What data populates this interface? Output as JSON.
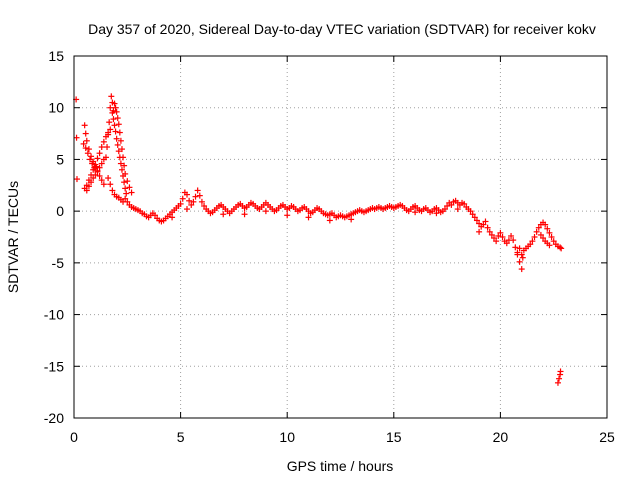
{
  "chart_data": {
    "type": "scatter",
    "title": "Day 357 of 2020, Sidereal Day-to-day VTEC variation (SDTVAR) for receiver kokv",
    "xlabel": "GPS time / hours",
    "ylabel": "SDTVAR / TECUs",
    "xlim": [
      0,
      25
    ],
    "ylim": [
      -20,
      15
    ],
    "xticks": [
      0,
      5,
      10,
      15,
      20,
      25
    ],
    "yticks": [
      15,
      10,
      5,
      0,
      -5,
      -10,
      -15,
      -20
    ],
    "grid": true,
    "marker": "+",
    "marker_color": "#ff0000",
    "series": [
      {
        "name": "SDTVAR",
        "points": [
          [
            0.1,
            10.8
          ],
          [
            0.12,
            7.1
          ],
          [
            0.14,
            3.1
          ],
          [
            0.5,
            8.3
          ],
          [
            0.55,
            7.5
          ],
          [
            0.6,
            6.8
          ],
          [
            0.7,
            6.0
          ],
          [
            0.8,
            5.3
          ],
          [
            0.9,
            4.8
          ],
          [
            1.0,
            4.3
          ],
          [
            1.1,
            3.8
          ],
          [
            1.2,
            3.4
          ],
          [
            1.3,
            3.0
          ],
          [
            1.4,
            2.6
          ],
          [
            0.45,
            6.5
          ],
          [
            0.55,
            6.1
          ],
          [
            0.65,
            5.6
          ],
          [
            0.75,
            5.0
          ],
          [
            0.85,
            4.6
          ],
          [
            0.95,
            4.2
          ],
          [
            1.05,
            4.3
          ],
          [
            0.5,
            2.2
          ],
          [
            0.6,
            2.5
          ],
          [
            0.7,
            3.0
          ],
          [
            0.8,
            3.5
          ],
          [
            0.9,
            4.0
          ],
          [
            1.0,
            4.5
          ],
          [
            1.1,
            5.1
          ],
          [
            1.2,
            5.6
          ],
          [
            1.3,
            6.2
          ],
          [
            1.4,
            6.7
          ],
          [
            1.5,
            7.2
          ],
          [
            1.6,
            7.6
          ],
          [
            1.7,
            7.9
          ],
          [
            0.6,
            2.0
          ],
          [
            0.7,
            2.4
          ],
          [
            0.8,
            2.8
          ],
          [
            0.9,
            3.2
          ],
          [
            1.0,
            3.5
          ],
          [
            1.1,
            3.9
          ],
          [
            1.2,
            4.2
          ],
          [
            1.3,
            4.6
          ],
          [
            1.4,
            5.0
          ],
          [
            1.5,
            5.2
          ],
          [
            1.55,
            6.2
          ],
          [
            1.6,
            7.4
          ],
          [
            1.65,
            8.6
          ],
          [
            1.7,
            10.0
          ],
          [
            1.75,
            11.1
          ],
          [
            1.8,
            10.5
          ],
          [
            1.85,
            9.7
          ],
          [
            1.8,
            9.5
          ],
          [
            1.85,
            8.9
          ],
          [
            1.9,
            8.3
          ],
          [
            1.95,
            7.7
          ],
          [
            2.0,
            7.0
          ],
          [
            2.05,
            6.4
          ],
          [
            2.1,
            5.8
          ],
          [
            2.15,
            5.2
          ],
          [
            2.2,
            4.6
          ],
          [
            2.25,
            4.0
          ],
          [
            2.3,
            3.4
          ],
          [
            2.35,
            2.8
          ],
          [
            2.4,
            2.2
          ],
          [
            2.45,
            1.7
          ],
          [
            1.9,
            10.4
          ],
          [
            1.95,
            10.0
          ],
          [
            2.0,
            9.6
          ],
          [
            2.05,
            9.0
          ],
          [
            2.1,
            8.4
          ],
          [
            2.15,
            7.6
          ],
          [
            2.2,
            6.8
          ],
          [
            2.25,
            6.0
          ],
          [
            2.3,
            5.2
          ],
          [
            2.35,
            4.4
          ],
          [
            2.4,
            3.6
          ],
          [
            2.5,
            2.9
          ],
          [
            2.6,
            2.3
          ],
          [
            2.7,
            1.8
          ],
          [
            1.6,
            3.2
          ],
          [
            1.7,
            2.6
          ],
          [
            1.8,
            2.0
          ],
          [
            1.9,
            1.6
          ],
          [
            2.0,
            1.4
          ],
          [
            2.1,
            1.3
          ],
          [
            2.2,
            1.1
          ],
          [
            2.3,
            0.9
          ],
          [
            2.4,
            1.2
          ],
          [
            2.5,
            0.9
          ],
          [
            2.6,
            0.6
          ],
          [
            2.7,
            0.4
          ],
          [
            2.8,
            0.3
          ],
          [
            2.9,
            0.2
          ],
          [
            3.0,
            0.1
          ],
          [
            3.1,
            0.0
          ],
          [
            3.2,
            -0.2
          ],
          [
            3.3,
            -0.3
          ],
          [
            3.4,
            -0.5
          ],
          [
            3.5,
            -0.6
          ],
          [
            3.6,
            -0.4
          ],
          [
            3.7,
            -0.2
          ],
          [
            3.8,
            -0.4
          ],
          [
            3.9,
            -0.7
          ],
          [
            4.0,
            -0.9
          ],
          [
            4.1,
            -1.0
          ],
          [
            4.2,
            -0.9
          ],
          [
            4.3,
            -0.7
          ],
          [
            4.4,
            -0.5
          ],
          [
            4.5,
            -0.3
          ],
          [
            4.6,
            -0.1
          ],
          [
            4.7,
            0.1
          ],
          [
            4.8,
            0.3
          ],
          [
            4.9,
            0.5
          ],
          [
            5.0,
            0.7
          ],
          [
            5.1,
            1.2
          ],
          [
            5.2,
            1.8
          ],
          [
            5.3,
            1.6
          ],
          [
            5.4,
            1.0
          ],
          [
            5.5,
            0.6
          ],
          [
            5.6,
            0.9
          ],
          [
            5.7,
            1.4
          ],
          [
            5.8,
            2.0
          ],
          [
            5.9,
            1.5
          ],
          [
            6.0,
            0.9
          ],
          [
            6.1,
            0.5
          ],
          [
            6.2,
            0.2
          ],
          [
            6.3,
            0.0
          ],
          [
            6.4,
            -0.2
          ],
          [
            6.5,
            -0.1
          ],
          [
            6.6,
            0.1
          ],
          [
            6.7,
            0.3
          ],
          [
            6.8,
            0.5
          ],
          [
            6.9,
            0.6
          ],
          [
            7.0,
            0.4
          ],
          [
            7.1,
            0.2
          ],
          [
            7.2,
            0.0
          ],
          [
            7.3,
            -0.2
          ],
          [
            7.4,
            0.0
          ],
          [
            7.5,
            0.2
          ],
          [
            7.6,
            0.4
          ],
          [
            7.7,
            0.6
          ],
          [
            7.8,
            0.7
          ],
          [
            7.9,
            0.5
          ],
          [
            8.0,
            0.3
          ],
          [
            8.1,
            0.4
          ],
          [
            8.2,
            0.6
          ],
          [
            8.3,
            0.8
          ],
          [
            8.4,
            0.7
          ],
          [
            8.5,
            0.5
          ],
          [
            8.6,
            0.3
          ],
          [
            8.7,
            0.2
          ],
          [
            8.8,
            0.4
          ],
          [
            8.9,
            0.6
          ],
          [
            9.0,
            0.8
          ],
          [
            9.1,
            0.6
          ],
          [
            9.2,
            0.4
          ],
          [
            9.3,
            0.2
          ],
          [
            9.4,
            0.0
          ],
          [
            9.5,
            0.1
          ],
          [
            9.6,
            0.3
          ],
          [
            9.7,
            0.5
          ],
          [
            9.8,
            0.6
          ],
          [
            9.9,
            0.4
          ],
          [
            10.0,
            0.2
          ],
          [
            10.1,
            0.3
          ],
          [
            10.2,
            0.5
          ],
          [
            10.3,
            0.4
          ],
          [
            10.4,
            0.2
          ],
          [
            10.5,
            0.0
          ],
          [
            10.6,
            0.1
          ],
          [
            10.7,
            0.3
          ],
          [
            10.8,
            0.4
          ],
          [
            10.9,
            0.2
          ],
          [
            11.0,
            0.0
          ],
          [
            11.1,
            -0.2
          ],
          [
            11.2,
            -0.1
          ],
          [
            11.3,
            0.1
          ],
          [
            11.4,
            0.3
          ],
          [
            11.5,
            0.2
          ],
          [
            11.6,
            0.0
          ],
          [
            11.7,
            -0.2
          ],
          [
            11.8,
            -0.3
          ],
          [
            11.9,
            -0.4
          ],
          [
            12.0,
            -0.3
          ],
          [
            12.1,
            -0.2
          ],
          [
            12.2,
            -0.4
          ],
          [
            12.3,
            -0.6
          ],
          [
            12.4,
            -0.5
          ],
          [
            12.5,
            -0.4
          ],
          [
            12.6,
            -0.5
          ],
          [
            12.7,
            -0.6
          ],
          [
            12.8,
            -0.5
          ],
          [
            12.9,
            -0.4
          ],
          [
            13.0,
            -0.3
          ],
          [
            13.1,
            -0.2
          ],
          [
            13.2,
            -0.1
          ],
          [
            13.3,
            0.0
          ],
          [
            13.4,
            0.1
          ],
          [
            13.5,
            0.0
          ],
          [
            13.6,
            -0.1
          ],
          [
            13.7,
            0.0
          ],
          [
            13.8,
            0.1
          ],
          [
            13.9,
            0.2
          ],
          [
            14.0,
            0.3
          ],
          [
            14.1,
            0.2
          ],
          [
            14.2,
            0.3
          ],
          [
            14.3,
            0.4
          ],
          [
            14.4,
            0.3
          ],
          [
            14.5,
            0.2
          ],
          [
            14.6,
            0.3
          ],
          [
            14.7,
            0.4
          ],
          [
            14.8,
            0.5
          ],
          [
            14.9,
            0.4
          ],
          [
            15.0,
            0.3
          ],
          [
            15.1,
            0.4
          ],
          [
            15.2,
            0.5
          ],
          [
            15.3,
            0.6
          ],
          [
            15.4,
            0.5
          ],
          [
            15.5,
            0.3
          ],
          [
            15.6,
            0.1
          ],
          [
            15.7,
            0.0
          ],
          [
            15.8,
            0.2
          ],
          [
            15.9,
            0.4
          ],
          [
            16.0,
            0.5
          ],
          [
            16.1,
            0.3
          ],
          [
            16.2,
            0.1
          ],
          [
            16.3,
            0.0
          ],
          [
            16.4,
            0.2
          ],
          [
            16.5,
            0.3
          ],
          [
            16.6,
            0.1
          ],
          [
            16.7,
            -0.1
          ],
          [
            16.8,
            0.0
          ],
          [
            16.9,
            0.2
          ],
          [
            17.0,
            0.3
          ],
          [
            17.1,
            0.1
          ],
          [
            17.2,
            -0.1
          ],
          [
            17.3,
            0.0
          ],
          [
            17.4,
            0.2
          ],
          [
            17.5,
            0.5
          ],
          [
            17.6,
            0.8
          ],
          [
            17.7,
            0.6
          ],
          [
            17.8,
            0.9
          ],
          [
            17.9,
            1.0
          ],
          [
            18.0,
            0.8
          ],
          [
            18.1,
            0.6
          ],
          [
            18.2,
            0.8
          ],
          [
            18.3,
            0.7
          ],
          [
            18.4,
            0.4
          ],
          [
            18.5,
            0.2
          ],
          [
            18.6,
            0.0
          ],
          [
            18.7,
            -0.3
          ],
          [
            18.8,
            -0.6
          ],
          [
            18.9,
            -0.9
          ],
          [
            19.0,
            -1.2
          ],
          [
            19.1,
            -1.5
          ],
          [
            19.2,
            -1.3
          ],
          [
            19.3,
            -1.0
          ],
          [
            19.4,
            -1.6
          ],
          [
            19.5,
            -2.0
          ],
          [
            19.6,
            -2.3
          ],
          [
            19.7,
            -2.6
          ],
          [
            19.8,
            -2.9
          ],
          [
            19.9,
            -2.4
          ],
          [
            20.0,
            -2.1
          ],
          [
            20.1,
            -2.5
          ],
          [
            20.2,
            -2.9
          ],
          [
            20.3,
            -3.1
          ],
          [
            20.4,
            -2.8
          ],
          [
            20.5,
            -2.4
          ],
          [
            20.6,
            -2.8
          ],
          [
            20.7,
            -3.5
          ],
          [
            20.8,
            -4.2
          ],
          [
            20.9,
            -4.9
          ],
          [
            21.0,
            -5.6
          ],
          [
            21.05,
            -4.5
          ],
          [
            21.1,
            -3.8
          ],
          [
            21.2,
            -3.6
          ],
          [
            21.3,
            -3.4
          ],
          [
            21.4,
            -3.2
          ],
          [
            21.5,
            -2.9
          ],
          [
            21.6,
            -2.5
          ],
          [
            21.7,
            -2.0
          ],
          [
            21.8,
            -1.6
          ],
          [
            21.9,
            -1.3
          ],
          [
            22.0,
            -1.1
          ],
          [
            22.1,
            -1.3
          ],
          [
            22.2,
            -1.7
          ],
          [
            22.3,
            -2.1
          ],
          [
            22.4,
            -2.5
          ],
          [
            22.5,
            -2.9
          ],
          [
            22.6,
            -3.2
          ],
          [
            22.7,
            -3.4
          ],
          [
            22.8,
            -3.5
          ],
          [
            22.85,
            -3.6
          ],
          [
            20.9,
            -3.6
          ],
          [
            21.0,
            -4.2
          ],
          [
            20.8,
            -4.0
          ],
          [
            21.9,
            -2.3
          ],
          [
            22.0,
            -2.6
          ],
          [
            22.1,
            -2.9
          ],
          [
            22.2,
            -3.1
          ],
          [
            22.3,
            -3.3
          ],
          [
            4.6,
            -0.6
          ],
          [
            5.3,
            0.2
          ],
          [
            7.0,
            -0.3
          ],
          [
            8.0,
            -0.3
          ],
          [
            9.0,
            0.0
          ],
          [
            10.0,
            -0.4
          ],
          [
            11.0,
            -0.6
          ],
          [
            12.0,
            -0.9
          ],
          [
            13.0,
            -0.8
          ],
          [
            16.0,
            -0.1
          ],
          [
            17.0,
            -0.2
          ],
          [
            18.0,
            0.2
          ],
          [
            19.0,
            -2.0
          ],
          [
            22.7,
            -16.6
          ],
          [
            22.75,
            -16.2
          ],
          [
            22.8,
            -15.8
          ],
          [
            22.82,
            -15.5
          ]
        ]
      }
    ]
  }
}
